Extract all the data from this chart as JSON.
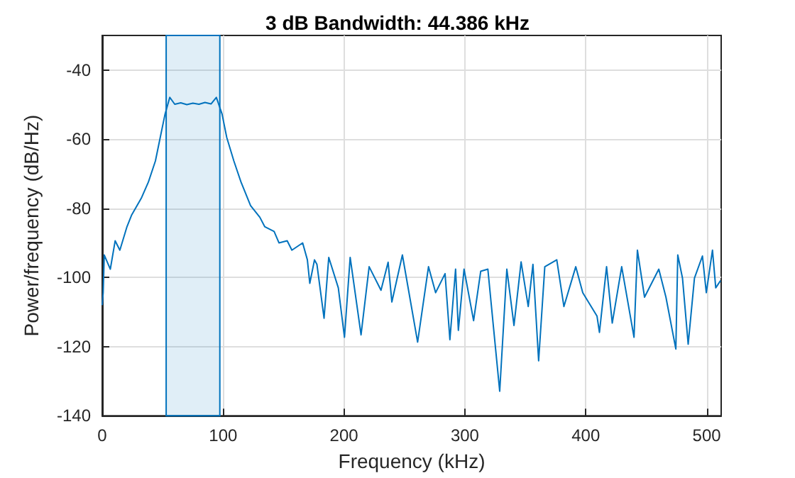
{
  "chart_data": {
    "type": "line",
    "title": "3 dB Bandwidth: 44.386 kHz",
    "xlabel": "Frequency (kHz)",
    "ylabel": "Power/frequency (dB/Hz)",
    "series": [
      {
        "color": "#0072bd",
        "x": [
          0,
          0.8,
          1.7,
          6.7,
          10.7,
          14.6,
          20.5,
          24.4,
          32.3,
          38.2,
          44,
          48,
          52,
          55.9,
          60,
          65,
          70,
          75,
          80,
          85,
          90,
          94.4,
          99.1,
          103,
          108.9,
          114.8,
          122.7,
          130.4,
          134.4,
          142.2,
          146.2,
          153,
          156.9,
          165.8,
          169.7,
          171.7,
          175.6,
          177.6,
          183.5,
          187.4,
          195.3,
          200.4,
          205.1,
          214.1,
          220.8,
          230.6,
          236.5,
          239.6,
          248.3,
          260.9,
          269.9,
          275.8,
          283.6,
          287.6,
          292.3,
          294.6,
          299.3,
          307.2,
          313.1,
          319,
          323.7,
          328.8,
          334.7,
          340.6,
          346.5,
          352.4,
          356.3,
          361,
          366.1,
          376,
          381.9,
          391.7,
          397.5,
          409.3,
          411.3,
          417.2,
          421.9,
          429.7,
          439.9,
          442.7,
          448.6,
          460.4,
          466.3,
          474.5,
          476.1,
          480,
          484.7,
          489.9,
          496.5,
          499.7,
          504.8,
          507.5,
          511.5
        ],
        "values": [
          -108,
          -104.4,
          -93.5,
          -97.6,
          -89.4,
          -92.1,
          -85.3,
          -81.9,
          -77.1,
          -72.4,
          -66.3,
          -59.5,
          -52.7,
          -47.9,
          -49.9,
          -49.5,
          -50,
          -49.6,
          -49.9,
          -49.4,
          -49.8,
          -47.9,
          -52.7,
          -59.5,
          -66.3,
          -72.4,
          -79.2,
          -82.6,
          -85.3,
          -86.7,
          -90,
          -89.4,
          -92.1,
          -90,
          -94.9,
          -101.7,
          -94.9,
          -96.2,
          -111.8,
          -94.2,
          -103,
          -117.3,
          -94.2,
          -116.6,
          -96.9,
          -103.7,
          -95.6,
          -107.1,
          -93.5,
          -118.7,
          -96.9,
          -104.4,
          -98.9,
          -118,
          -97.6,
          -115.3,
          -97.6,
          -112.5,
          -98.2,
          -97.6,
          -114.6,
          -132.9,
          -97.6,
          -113.9,
          -95.5,
          -108.4,
          -96.2,
          -124.1,
          -96.9,
          -94.9,
          -108.4,
          -96.9,
          -104.4,
          -111.2,
          -115.9,
          -96.9,
          -113.2,
          -96.9,
          -117.3,
          -92.1,
          -105.7,
          -97.6,
          -105.7,
          -120.7,
          -93.5,
          -100.2,
          -119.3,
          -100.2,
          -93.8,
          -104.4,
          -92.1,
          -103,
          -100.9
        ]
      }
    ],
    "xlim": [
      0,
      512
    ],
    "ylim": [
      -140,
      -30
    ],
    "xticks": [
      0,
      100,
      200,
      300,
      400,
      500
    ],
    "yticks": [
      -140,
      -120,
      -100,
      -80,
      -60,
      -40
    ],
    "bands": [
      {
        "axis": "x",
        "from": 52.9,
        "to": 97.3,
        "color": "#0072bd"
      }
    ],
    "grid": true,
    "marker": "none",
    "line_style": "solid"
  }
}
